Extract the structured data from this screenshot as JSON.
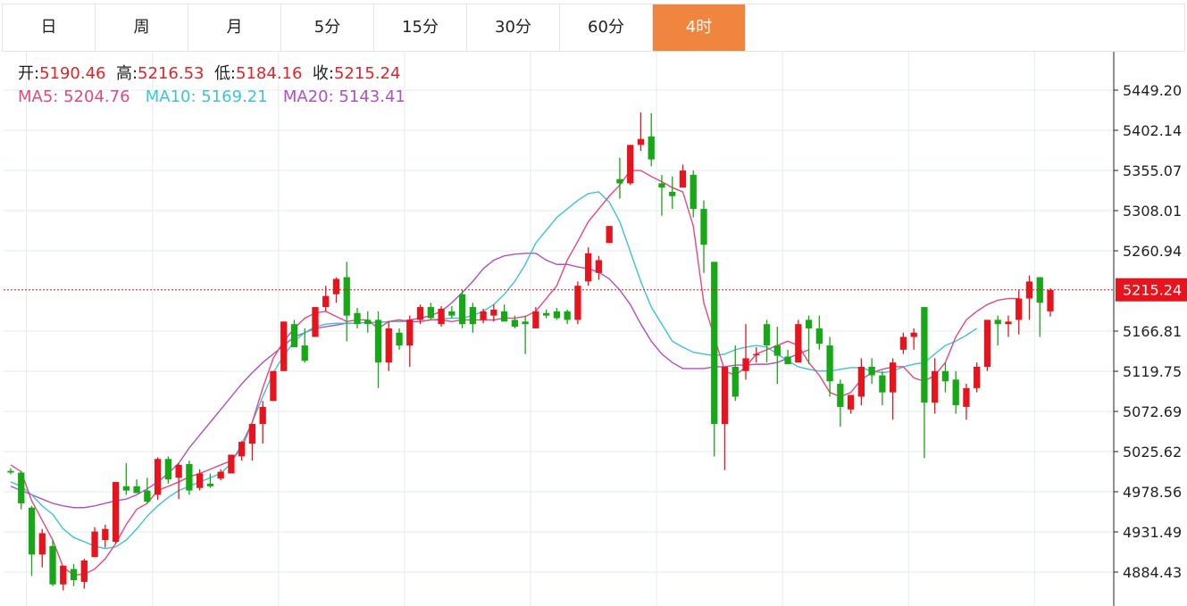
{
  "tabs": [
    {
      "label": "日"
    },
    {
      "label": "周"
    },
    {
      "label": "月"
    },
    {
      "label": "5分"
    },
    {
      "label": "15分"
    },
    {
      "label": "30分"
    },
    {
      "label": "60分"
    },
    {
      "label": "4时",
      "active": true
    }
  ],
  "info": {
    "open_label": "开:",
    "open": "5190.46",
    "high_label": "高:",
    "high": "5216.53",
    "low_label": "低:",
    "low": "5184.16",
    "close_label": "收:",
    "close": "5215.24",
    "ma5_label": "MA5:",
    "ma5": "5204.76",
    "ma10_label": "MA10:",
    "ma10": "5169.21",
    "ma20_label": "MA20:",
    "ma20": "5143.41"
  },
  "colors": {
    "up": "#e8141d",
    "down": "#16a815",
    "ma5": "#e8477e",
    "ma10": "#3cc4d6",
    "ma20": "#b34fc4",
    "grid": "#e3ebf2",
    "current": "#e8141d",
    "active_tab": "#f0853f"
  },
  "chart_data": {
    "type": "candlestick",
    "y_ticks": [
      "5449.20",
      "5402.14",
      "5355.07",
      "5308.01",
      "5260.94",
      "5166.81",
      "5119.75",
      "5072.69",
      "5025.62",
      "4978.56",
      "4931.49",
      "4884.43"
    ],
    "ylim": [
      4860,
      5480
    ],
    "current_price": "5215.24",
    "candles": [
      [
        5003,
        5006,
        4999,
        5001
      ],
      [
        5001,
        5003,
        4958,
        4965
      ],
      [
        4960,
        4962,
        4880,
        4905
      ],
      [
        4905,
        4935,
        4890,
        4930
      ],
      [
        4915,
        4922,
        4868,
        4870
      ],
      [
        4870,
        4892,
        4863,
        4892
      ],
      [
        4888,
        4894,
        4868,
        4875
      ],
      [
        4873,
        4900,
        4865,
        4898
      ],
      [
        4902,
        4937,
        4902,
        4932
      ],
      [
        4922,
        4940,
        4913,
        4935
      ],
      [
        4920,
        4990,
        4918,
        4990
      ],
      [
        4985,
        5012,
        4975,
        4980
      ],
      [
        4985,
        4993,
        4977,
        4977
      ],
      [
        4980,
        4995,
        4965,
        4967
      ],
      [
        4975,
        5019,
        4969,
        5017
      ],
      [
        5017,
        5020,
        4988,
        4993
      ],
      [
        4995,
        5012,
        4970,
        5010
      ],
      [
        5011,
        5015,
        4975,
        4980
      ],
      [
        4983,
        5005,
        4980,
        5000
      ],
      [
        4988,
        5000,
        4983,
        4985
      ],
      [
        4994,
        5005,
        4992,
        5002
      ],
      [
        5000,
        5022,
        5000,
        5022
      ],
      [
        5020,
        5038,
        5015,
        5037
      ],
      [
        5035,
        5055,
        5015,
        5058
      ],
      [
        5058,
        5085,
        5035,
        5078
      ],
      [
        5085,
        5120,
        5085,
        5120
      ],
      [
        5120,
        5178,
        5120,
        5178
      ],
      [
        5175,
        5180,
        5150,
        5148
      ],
      [
        5150,
        5170,
        5130,
        5132
      ],
      [
        5160,
        5195,
        5160,
        5195
      ],
      [
        5195,
        5220,
        5190,
        5208
      ],
      [
        5210,
        5230,
        5200,
        5228
      ],
      [
        5230,
        5248,
        5155,
        5185
      ],
      [
        5188,
        5194,
        5170,
        5175
      ],
      [
        5180,
        5190,
        5165,
        5175
      ],
      [
        5180,
        5190,
        5100,
        5130
      ],
      [
        5130,
        5178,
        5120,
        5170
      ],
      [
        5165,
        5170,
        5145,
        5150
      ],
      [
        5150,
        5185,
        5125,
        5180
      ],
      [
        5180,
        5198,
        5175,
        5195
      ],
      [
        5195,
        5200,
        5180,
        5182
      ],
      [
        5175,
        5196,
        5172,
        5193
      ],
      [
        5190,
        5196,
        5182,
        5185
      ],
      [
        5210,
        5215,
        5170,
        5175
      ],
      [
        5195,
        5200,
        5165,
        5175
      ],
      [
        5180,
        5193,
        5176,
        5190
      ],
      [
        5185,
        5198,
        5178,
        5192
      ],
      [
        5190,
        5198,
        5180,
        5178
      ],
      [
        5180,
        5185,
        5170,
        5172
      ],
      [
        5178,
        5185,
        5140,
        5175
      ],
      [
        5170,
        5195,
        5170,
        5190
      ],
      [
        5188,
        5192,
        5182,
        5185
      ],
      [
        5190,
        5194,
        5180,
        5182
      ],
      [
        5190,
        5192,
        5175,
        5180
      ],
      [
        5180,
        5225,
        5175,
        5220
      ],
      [
        5225,
        5265,
        5220,
        5258
      ],
      [
        5235,
        5255,
        5227,
        5250
      ],
      [
        5270,
        5290,
        5270,
        5290
      ],
      [
        5345,
        5370,
        5322,
        5340
      ],
      [
        5340,
        5385,
        5338,
        5385
      ],
      [
        5385,
        5423,
        5378,
        5392
      ],
      [
        5395,
        5422,
        5360,
        5368
      ],
      [
        5340,
        5350,
        5302,
        5335
      ],
      [
        5330,
        5348,
        5310,
        5325
      ],
      [
        5335,
        5362,
        5335,
        5355
      ],
      [
        5350,
        5355,
        5300,
        5310
      ],
      [
        5310,
        5320,
        5235,
        5268
      ],
      [
        5248,
        5248,
        5020,
        5058
      ],
      [
        5058,
        5125,
        5004,
        5125
      ],
      [
        5125,
        5150,
        5085,
        5090
      ],
      [
        5120,
        5175,
        5110,
        5135
      ],
      [
        5140,
        5148,
        5130,
        5140
      ],
      [
        5175,
        5180,
        5130,
        5150
      ],
      [
        5150,
        5172,
        5105,
        5138
      ],
      [
        5137,
        5145,
        5130,
        5128
      ],
      [
        5130,
        5180,
        5130,
        5175
      ],
      [
        5180,
        5185,
        5128,
        5170
      ],
      [
        5170,
        5185,
        5145,
        5152
      ],
      [
        5150,
        5160,
        5090,
        5108
      ],
      [
        5105,
        5110,
        5055,
        5078
      ],
      [
        5075,
        5092,
        5070,
        5092
      ],
      [
        5090,
        5135,
        5080,
        5125
      ],
      [
        5125,
        5135,
        5105,
        5115
      ],
      [
        5115,
        5120,
        5080,
        5095
      ],
      [
        5095,
        5135,
        5063,
        5130
      ],
      [
        5145,
        5165,
        5140,
        5160
      ],
      [
        5160,
        5170,
        5145,
        5165
      ],
      [
        5195,
        5195,
        5018,
        5083
      ],
      [
        5083,
        5135,
        5070,
        5120
      ],
      [
        5120,
        5130,
        5095,
        5108
      ],
      [
        5110,
        5120,
        5070,
        5080
      ],
      [
        5078,
        5105,
        5063,
        5100
      ],
      [
        5100,
        5130,
        5095,
        5125
      ],
      [
        5125,
        5180,
        5120,
        5180
      ],
      [
        5180,
        5185,
        5150,
        5175
      ],
      [
        5175,
        5185,
        5160,
        5178
      ],
      [
        5180,
        5215,
        5163,
        5205
      ],
      [
        5205,
        5232,
        5180,
        5225
      ],
      [
        5230,
        5230,
        5160,
        5200
      ],
      [
        5190,
        5217,
        5184,
        5215
      ]
    ],
    "ma5": [
      5010,
      5002,
      4968,
      4945,
      4922,
      4890,
      4881,
      4882,
      4888,
      4900,
      4918,
      4940,
      4958,
      4965,
      4980,
      4985,
      4990,
      4996,
      5000,
      5005,
      5010,
      5015,
      5030,
      5060,
      5100,
      5135,
      5155,
      5170,
      5182,
      5188,
      5190,
      5184,
      5178,
      5180,
      5180,
      5170,
      5178,
      5180,
      5178,
      5178,
      5180,
      5180,
      5178,
      5180,
      5180,
      5180,
      5180,
      5182,
      5182,
      5184,
      5190,
      5205,
      5220,
      5250,
      5272,
      5295,
      5310,
      5325,
      5338,
      5355,
      5355,
      5348,
      5342,
      5335,
      5330,
      5290,
      5200,
      5160,
      5120,
      5115,
      5125,
      5140,
      5145,
      5150,
      5155,
      5150,
      5130,
      5115,
      5095,
      5090,
      5095,
      5110,
      5118,
      5122,
      5125,
      5125,
      5112,
      5108,
      5115,
      5130,
      5160,
      5180,
      5190,
      5198,
      5203,
      5205,
      5205
    ],
    "ma10": [
      4990,
      4985,
      4975,
      4962,
      4952,
      4935,
      4925,
      4920,
      4915,
      4912,
      4914,
      4922,
      4935,
      4950,
      4962,
      4972,
      4980,
      4985,
      4990,
      4995,
      5000,
      5012,
      5035,
      5060,
      5090,
      5118,
      5138,
      5155,
      5165,
      5172,
      5175,
      5176,
      5176,
      5176,
      5177,
      5177,
      5178,
      5178,
      5178,
      5178,
      5180,
      5181,
      5182,
      5182,
      5185,
      5190,
      5198,
      5210,
      5225,
      5245,
      5270,
      5285,
      5300,
      5310,
      5320,
      5328,
      5330,
      5318,
      5295,
      5260,
      5225,
      5195,
      5175,
      5155,
      5148,
      5142,
      5140,
      5138,
      5140,
      5145,
      5148,
      5150,
      5148,
      5140,
      5132,
      5125,
      5122,
      5120,
      5120,
      5122,
      5124,
      5124,
      5120,
      5118,
      5120,
      5125,
      5128,
      5130,
      5140,
      5150,
      5155,
      5162,
      5170
    ],
    "ma20": [
      4985,
      4980,
      4975,
      4970,
      4965,
      4962,
      4960,
      4960,
      4962,
      4965,
      4968,
      4970,
      4975,
      4982,
      4990,
      5000,
      5012,
      5030,
      5045,
      5060,
      5075,
      5090,
      5105,
      5118,
      5130,
      5140,
      5150,
      5160,
      5165,
      5170,
      5172,
      5174,
      5176,
      5176,
      5177,
      5177,
      5178,
      5178,
      5180,
      5182,
      5185,
      5190,
      5200,
      5212,
      5225,
      5240,
      5250,
      5255,
      5257,
      5258,
      5258,
      5250,
      5245,
      5245,
      5242,
      5240,
      5236,
      5228,
      5215,
      5198,
      5175,
      5155,
      5140,
      5130,
      5123,
      5123,
      5123,
      5125,
      5125,
      5127,
      5127,
      5128,
      5128,
      5130,
      5135,
      5140,
      5145
    ]
  }
}
